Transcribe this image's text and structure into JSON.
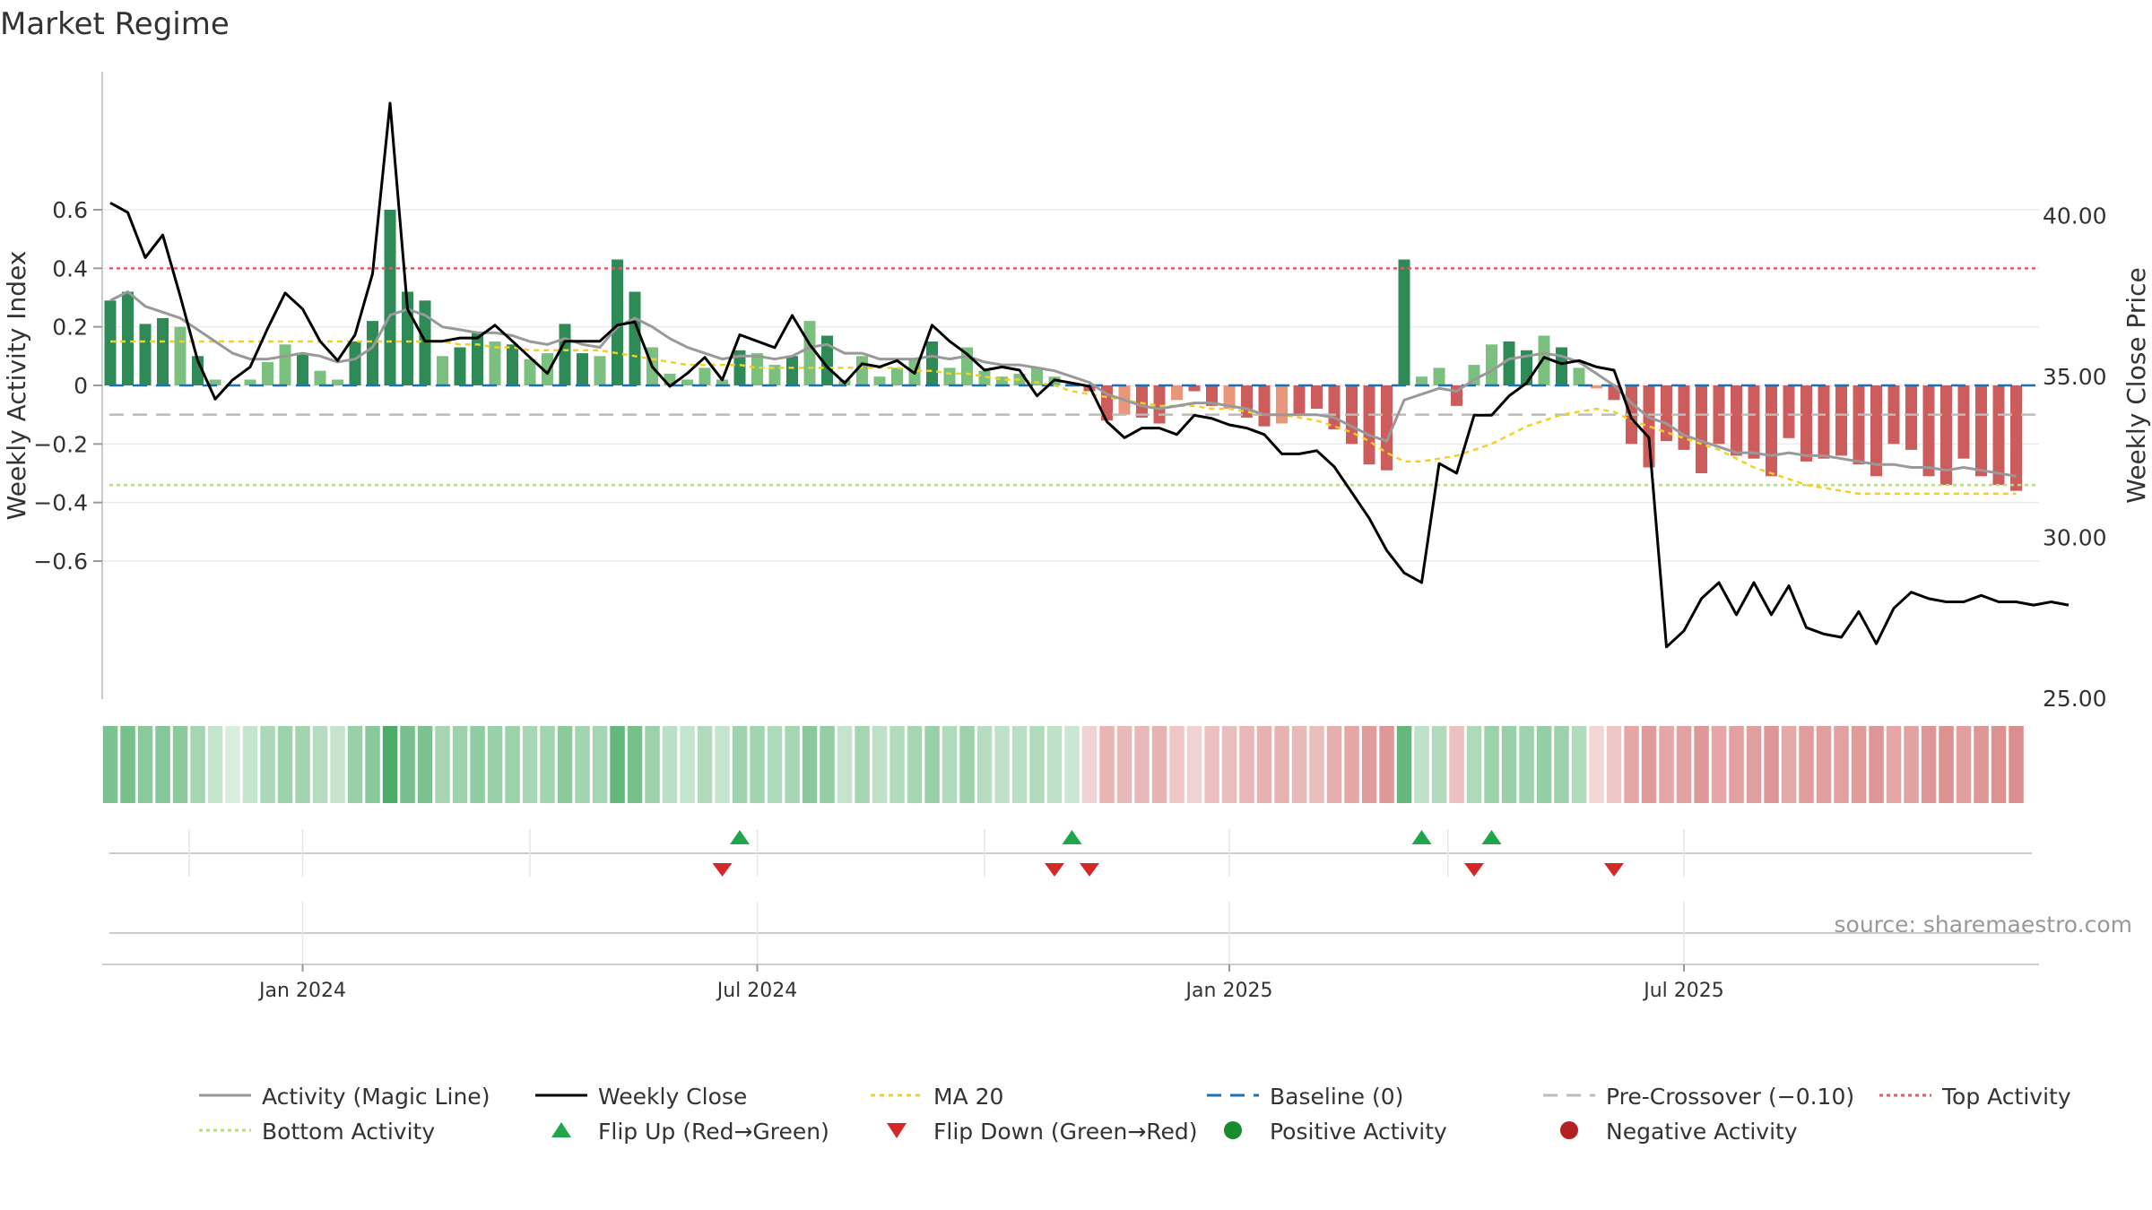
{
  "chart_data": {
    "type": "bar",
    "title": "Market Regime",
    "source_note": "source: sharemaestro.com",
    "y_left_label": "Weekly Activity Index",
    "y_right_label": "Weekly Close Price",
    "y_left_lim": [
      -0.64,
      0.65
    ],
    "y_right_lim": [
      24.8,
      44.1
    ],
    "y_left_ticks": [
      {
        "v": 0.6,
        "label": "0.6"
      },
      {
        "v": 0.4,
        "label": "0.4"
      },
      {
        "v": 0.2,
        "label": "0.2"
      },
      {
        "v": 0,
        "label": "0"
      },
      {
        "v": -0.2,
        "label": "−0.2"
      },
      {
        "v": -0.4,
        "label": "−0.4"
      },
      {
        "v": -0.6,
        "label": "−0.6"
      }
    ],
    "y_right_ticks": [
      {
        "v": 40,
        "label": "40.00"
      },
      {
        "v": 35,
        "label": "35.00"
      },
      {
        "v": 30,
        "label": "30.00"
      },
      {
        "v": 25,
        "label": "25.00"
      }
    ],
    "x_ticks": [
      {
        "week": 11,
        "label": "Jan 2024"
      },
      {
        "week": 37,
        "label": "Jul 2024"
      },
      {
        "week": 64,
        "label": "Jan 2025"
      },
      {
        "week": 90,
        "label": "Jul 2025"
      }
    ],
    "minor_x_ticks": [
      4.5,
      24,
      50,
      76.5
    ],
    "grid": true,
    "reference_lines": {
      "baseline": 0,
      "pre_crossover": -0.1,
      "top_activity": 0.4,
      "bottom_activity": -0.34
    },
    "activity_index": [
      0.29,
      0.32,
      0.21,
      0.23,
      0.2,
      0.1,
      0.02,
      0,
      0.02,
      0.08,
      0.14,
      0.11,
      0.05,
      0.02,
      0.15,
      0.22,
      0.6,
      0.32,
      0.29,
      0.1,
      0.13,
      0.18,
      0.15,
      0.14,
      0.09,
      0.11,
      0.21,
      0.11,
      0.1,
      0.43,
      0.32,
      0.13,
      0.04,
      0.02,
      0.06,
      0.02,
      0.12,
      0.11,
      0.07,
      0.1,
      0.22,
      0.17,
      0.02,
      0.1,
      0.03,
      0.06,
      0.09,
      0.15,
      0.06,
      0.13,
      0.05,
      0.03,
      0.04,
      0.06,
      0.03,
      0.01,
      -0.02,
      -0.12,
      -0.1,
      -0.11,
      -0.13,
      -0.05,
      -0.02,
      -0.07,
      -0.08,
      -0.11,
      -0.14,
      -0.13,
      -0.1,
      -0.08,
      -0.15,
      -0.2,
      -0.27,
      -0.29,
      0.43,
      0.03,
      0.06,
      -0.07,
      0.07,
      0.14,
      0.15,
      0.12,
      0.17,
      0.13,
      0.06,
      -0.01,
      -0.05,
      -0.2,
      -0.28,
      -0.19,
      -0.22,
      -0.3,
      -0.2,
      -0.24,
      -0.25,
      -0.31,
      -0.18,
      -0.26,
      -0.25,
      -0.24,
      -0.27,
      -0.31,
      -0.2,
      -0.22,
      -0.31,
      -0.34,
      -0.25,
      -0.31,
      -0.34,
      -0.36
    ],
    "magic_line": [
      0.29,
      0.32,
      0.27,
      0.25,
      0.23,
      0.19,
      0.15,
      0.11,
      0.09,
      0.09,
      0.1,
      0.11,
      0.1,
      0.08,
      0.09,
      0.13,
      0.24,
      0.26,
      0.24,
      0.2,
      0.19,
      0.18,
      0.18,
      0.17,
      0.15,
      0.14,
      0.16,
      0.14,
      0.13,
      0.2,
      0.23,
      0.2,
      0.16,
      0.13,
      0.11,
      0.09,
      0.1,
      0.1,
      0.09,
      0.1,
      0.13,
      0.14,
      0.11,
      0.11,
      0.09,
      0.09,
      0.09,
      0.1,
      0.09,
      0.1,
      0.08,
      0.07,
      0.07,
      0.06,
      0.05,
      0.03,
      0.01,
      -0.03,
      -0.05,
      -0.07,
      -0.08,
      -0.07,
      -0.06,
      -0.06,
      -0.07,
      -0.08,
      -0.1,
      -0.1,
      -0.1,
      -0.1,
      -0.11,
      -0.14,
      -0.17,
      -0.19,
      -0.05,
      -0.03,
      -0.01,
      -0.02,
      0.02,
      0.05,
      0.09,
      0.1,
      0.11,
      0.1,
      0.08,
      0.04,
      0,
      -0.06,
      -0.11,
      -0.13,
      -0.17,
      -0.19,
      -0.21,
      -0.23,
      -0.23,
      -0.24,
      -0.23,
      -0.24,
      -0.24,
      -0.25,
      -0.26,
      -0.27,
      -0.27,
      -0.28,
      -0.28,
      -0.29,
      -0.28,
      -0.29,
      -0.3,
      -0.31
    ],
    "ma20_activity": [
      0.15,
      0.15,
      0.15,
      0.15,
      0.15,
      0.15,
      0.15,
      0.15,
      0.15,
      0.15,
      0.15,
      0.15,
      0.15,
      0.15,
      0.15,
      0.15,
      0.15,
      0.15,
      0.15,
      0.15,
      0.14,
      0.14,
      0.13,
      0.13,
      0.12,
      0.12,
      0.12,
      0.12,
      0.12,
      0.11,
      0.1,
      0.09,
      0.08,
      0.07,
      0.07,
      0.07,
      0.07,
      0.06,
      0.06,
      0.06,
      0.06,
      0.06,
      0.06,
      0.06,
      0.06,
      0.06,
      0.05,
      0.05,
      0.04,
      0.04,
      0.03,
      0.02,
      0.02,
      0.01,
      0,
      -0.02,
      -0.03,
      -0.04,
      -0.05,
      -0.06,
      -0.07,
      -0.07,
      -0.07,
      -0.08,
      -0.08,
      -0.09,
      -0.1,
      -0.1,
      -0.11,
      -0.12,
      -0.14,
      -0.16,
      -0.19,
      -0.23,
      -0.26,
      -0.26,
      -0.25,
      -0.24,
      -0.22,
      -0.2,
      -0.17,
      -0.14,
      -0.12,
      -0.1,
      -0.09,
      -0.08,
      -0.09,
      -0.12,
      -0.14,
      -0.16,
      -0.18,
      -0.2,
      -0.22,
      -0.25,
      -0.28,
      -0.3,
      -0.32,
      -0.34,
      -0.35,
      -0.36,
      -0.37,
      -0.37,
      -0.37,
      -0.37,
      -0.37,
      -0.37,
      -0.37,
      -0.37,
      -0.37,
      -0.37
    ],
    "weekly_close": [
      40.4,
      40.1,
      38.7,
      39.4,
      37.5,
      35.5,
      34.3,
      34.9,
      35.3,
      36.5,
      37.6,
      37.1,
      36.1,
      35.5,
      36.3,
      38.2,
      43.5,
      37.1,
      36.1,
      36.1,
      36.2,
      36.2,
      36.6,
      36.1,
      35.6,
      35.1,
      36.1,
      36.1,
      36.1,
      36.6,
      36.7,
      35.3,
      34.7,
      35.1,
      35.6,
      34.9,
      36.3,
      36.1,
      35.9,
      36.9,
      36.0,
      35.3,
      34.8,
      35.4,
      35.3,
      35.5,
      35.1,
      36.6,
      36.1,
      35.7,
      35.2,
      35.3,
      35.2,
      34.4,
      34.9,
      34.8,
      34.7,
      33.6,
      33.1,
      33.4,
      33.4,
      33.2,
      33.8,
      33.7,
      33.5,
      33.4,
      33.2,
      32.6,
      32.6,
      32.7,
      32.2,
      31.4,
      30.6,
      29.6,
      28.9,
      28.6,
      32.3,
      32.0,
      33.8,
      33.8,
      34.4,
      34.8,
      35.6,
      35.4,
      35.5,
      35.3,
      35.2,
      33.7,
      33.1,
      26.6,
      27.1,
      28.1,
      28.6,
      27.6,
      28.6,
      27.6,
      28.5,
      27.2,
      27.0,
      26.9,
      27.7,
      26.7,
      27.8,
      28.3,
      28.1,
      28.0,
      28.0,
      28.2,
      28.0,
      28.0,
      27.9,
      28.0,
      27.9
    ],
    "flip_up_weeks": [
      36,
      55,
      75,
      79
    ],
    "flip_down_weeks": [
      35,
      54,
      56,
      78,
      86
    ],
    "legend": [
      {
        "label": "Activity (Magic Line)",
        "kind": "line",
        "color": "#999999",
        "dash": "none"
      },
      {
        "label": "Weekly Close",
        "kind": "line",
        "color": "#000000",
        "dash": "none"
      },
      {
        "label": "MA 20",
        "kind": "line",
        "color": "#f2d024",
        "dash": "5,5"
      },
      {
        "label": "Baseline (0)",
        "kind": "line",
        "color": "#1f6fb5",
        "dash": "16,10"
      },
      {
        "label": "Pre-Crossover (−0.10)",
        "kind": "line",
        "color": "#bbbbbb",
        "dash": "16,10"
      },
      {
        "label": "Top Activity",
        "kind": "line",
        "color": "#e05a6a",
        "dash": "4,4"
      },
      {
        "label": "Bottom Activity",
        "kind": "line",
        "color": "#b7dc79",
        "dash": "4,4"
      },
      {
        "label": "Flip Up (Red→Green)",
        "kind": "tri-up",
        "color": "#1fa64b"
      },
      {
        "label": "Flip Down (Green→Red)",
        "kind": "tri-down",
        "color": "#d62728"
      },
      {
        "label": "Positive Activity",
        "kind": "dot",
        "color": "#1a8a2e"
      },
      {
        "label": "Negative Activity",
        "kind": "dot",
        "color": "#b22222"
      }
    ],
    "colors": {
      "pos_strong": "#2e8b57",
      "pos_light": "#7cc080",
      "neg_strong": "#cd5c5c",
      "neg_light": "#e9967a",
      "heat_pos": "#2e9e4f",
      "heat_neg": "#cd5c5c"
    }
  }
}
